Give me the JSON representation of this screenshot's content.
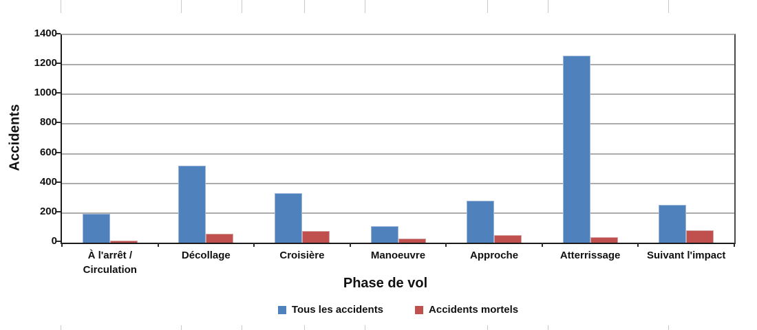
{
  "chart_data": {
    "type": "bar",
    "title": "",
    "xlabel": "Phase de vol",
    "ylabel": "Accidents",
    "categories": [
      "À l'arrêt / Circulation",
      "Décollage",
      "Croisière",
      "Manoeuvre",
      "Approche",
      "Atterrissage",
      "Suivant l'impact"
    ],
    "series": [
      {
        "name": "Tous les accidents",
        "color": "#4F81BD",
        "border_color": "#9CB6DA",
        "values": [
          195,
          520,
          335,
          110,
          285,
          1260,
          255
        ]
      },
      {
        "name": "Accidents mortels",
        "color": "#C0504D",
        "border_color": "#D5A3A1",
        "values": [
          15,
          60,
          80,
          30,
          50,
          35,
          85
        ]
      }
    ],
    "ylim": [
      0,
      1400
    ],
    "yticks": [
      0,
      200,
      400,
      600,
      800,
      1000,
      1200,
      1400
    ],
    "grid": true,
    "legend_position": "bottom"
  }
}
